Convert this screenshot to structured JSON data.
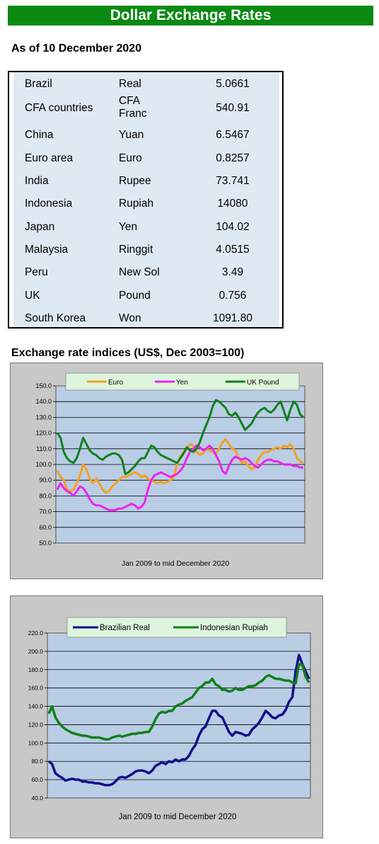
{
  "header": {
    "title": "Dollar Exchange Rates"
  },
  "as_of": "As of 10 December 2020",
  "rates": [
    {
      "country": "Brazil",
      "currency": "Real",
      "value": "5.0661"
    },
    {
      "country": "CFA countries",
      "currency": "CFA Franc",
      "value": "540.91"
    },
    {
      "country": "China",
      "currency": "Yuan",
      "value": "6.5467"
    },
    {
      "country": "Euro area",
      "currency": "Euro",
      "value": "0.8257"
    },
    {
      "country": "India",
      "currency": "Rupee",
      "value": "73.741"
    },
    {
      "country": "Indonesia",
      "currency": "Rupiah",
      "value": "14080"
    },
    {
      "country": "Japan",
      "currency": "Yen",
      "value": "104.02"
    },
    {
      "country": "Malaysia",
      "currency": "Ringgit",
      "value": "4.0515"
    },
    {
      "country": "Peru",
      "currency": "New Sol",
      "value": "3.49"
    },
    {
      "country": "UK",
      "currency": "Pound",
      "value": "0.756"
    },
    {
      "country": "South Korea",
      "currency": "Won",
      "value": "1091.80"
    }
  ],
  "index_section_title": "Exchange rate indices (US$, Dec 2003=100)",
  "chart_data": [
    {
      "type": "line",
      "xlabel": "Jan 2009  to mid December 2020",
      "x_range": [
        "Jan 2009",
        "Dec 2020"
      ],
      "ylim": [
        50,
        150
      ],
      "yticks": [
        "50.0",
        "60.0",
        "70.0",
        "80.0",
        "90.0",
        "100.0",
        "110.0",
        "120.0",
        "130.0",
        "140.0",
        "150.0"
      ],
      "grid": true,
      "legend": "top",
      "series": [
        {
          "name": "Euro",
          "color": "#f5a020",
          "values": [
            96,
            92,
            90,
            84,
            83,
            84,
            88,
            93,
            100,
            97,
            91,
            88,
            91,
            88,
            84,
            82,
            83,
            86,
            88,
            90,
            92,
            92,
            93,
            94,
            95,
            94,
            92,
            93,
            91,
            90,
            89,
            88,
            89,
            88,
            89,
            90,
            92,
            100,
            105,
            108,
            110,
            113,
            112,
            108,
            106,
            107,
            110,
            109,
            108,
            107,
            110,
            114,
            116,
            113,
            110,
            109,
            104,
            101,
            102,
            99,
            97,
            98,
            103,
            106,
            108,
            108,
            109,
            110,
            111,
            110,
            112,
            111,
            113,
            110,
            104,
            102,
            101
          ]
        },
        {
          "name": "Yen",
          "color": "#f020f0",
          "values": [
            84,
            88,
            85,
            83,
            82,
            80,
            83,
            86,
            85,
            82,
            78,
            75,
            74,
            74,
            73,
            72,
            71,
            71,
            71,
            72,
            72,
            73,
            74,
            75,
            74,
            72,
            73,
            76,
            84,
            90,
            93,
            94,
            95,
            94,
            93,
            92,
            93,
            94,
            96,
            99,
            104,
            108,
            110,
            112,
            111,
            109,
            110,
            112,
            110,
            106,
            102,
            96,
            94,
            99,
            103,
            105,
            104,
            103,
            104,
            103,
            101,
            99,
            98,
            100,
            102,
            103,
            103,
            102,
            102,
            101,
            100,
            100,
            100,
            99,
            99,
            98,
            98
          ]
        },
        {
          "name": "UK Pound",
          "color": "#10801a",
          "values": [
            120,
            117,
            108,
            104,
            102,
            101,
            104,
            110,
            117,
            113,
            109,
            107,
            106,
            104,
            103,
            105,
            106,
            107,
            107,
            106,
            103,
            94,
            95,
            97,
            99,
            102,
            104,
            104,
            108,
            112,
            111,
            108,
            106,
            105,
            104,
            103,
            102,
            101,
            104,
            107,
            111,
            109,
            108,
            110,
            114,
            120,
            125,
            130,
            137,
            141,
            140,
            138,
            136,
            132,
            131,
            133,
            130,
            126,
            122,
            124,
            126,
            130,
            133,
            135,
            136,
            134,
            133,
            135,
            138,
            140,
            134,
            128,
            135,
            140,
            138,
            132,
            130
          ]
        }
      ]
    },
    {
      "type": "line",
      "xlabel": "Jan 2009  to mid  December 2020",
      "x_range": [
        "Jan 2009",
        "Dec 2020"
      ],
      "ylim": [
        40,
        220
      ],
      "yticks": [
        "40.0",
        "60.0",
        "80.0",
        "100.0",
        "120.0",
        "140.0",
        "160.0",
        "180.0",
        "200.0",
        "220.0"
      ],
      "grid": true,
      "legend": "top",
      "series": [
        {
          "name": "Brazilian Real",
          "color": "#10108a",
          "values": [
            80,
            77,
            67,
            64,
            62,
            59,
            60,
            61,
            60,
            60,
            58,
            58,
            57,
            57,
            56,
            56,
            55,
            54,
            54,
            55,
            58,
            62,
            63,
            62,
            64,
            66,
            69,
            70,
            70,
            69,
            67,
            70,
            75,
            77,
            79,
            77,
            80,
            79,
            82,
            80,
            82,
            82,
            86,
            93,
            98,
            108,
            115,
            118,
            127,
            135,
            135,
            130,
            128,
            120,
            112,
            108,
            112,
            111,
            110,
            108,
            109,
            115,
            118,
            122,
            128,
            135,
            132,
            128,
            127,
            130,
            131,
            136,
            145,
            150,
            178,
            196,
            186,
            178,
            170
          ]
        },
        {
          "name": "Indonesian Rupiah",
          "color": "#10801a",
          "values": [
            132,
            140,
            128,
            122,
            118,
            115,
            113,
            111,
            110,
            109,
            108,
            108,
            107,
            106,
            106,
            106,
            105,
            104,
            104,
            106,
            107,
            108,
            107,
            108,
            109,
            110,
            110,
            111,
            111,
            112,
            112,
            118,
            126,
            132,
            134,
            133,
            135,
            135,
            140,
            142,
            143,
            146,
            148,
            150,
            155,
            160,
            162,
            166,
            166,
            170,
            164,
            162,
            158,
            158,
            156,
            157,
            160,
            158,
            158,
            160,
            162,
            162,
            163,
            166,
            168,
            172,
            174,
            172,
            170,
            170,
            169,
            168,
            168,
            166,
            165,
            186,
            185,
            172,
            166
          ]
        }
      ]
    }
  ]
}
